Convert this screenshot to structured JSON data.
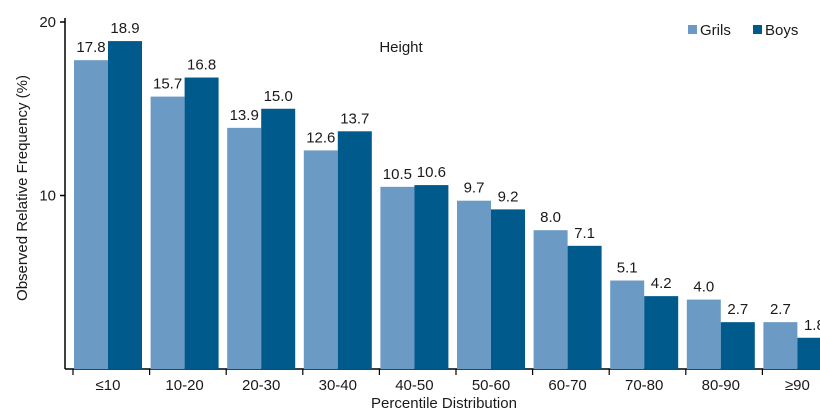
{
  "chart_data": {
    "type": "bar",
    "title": "Height",
    "xlabel": "Percentile Distribution",
    "ylabel": "Observed Relative Frequency (%)",
    "categories": [
      "≤10",
      "10-20",
      "20-30",
      "30-40",
      "40-50",
      "50-60",
      "60-70",
      "70-80",
      "80-90",
      "≥90"
    ],
    "series": [
      {
        "name": "Grils",
        "color": "#6b9ac4",
        "values": [
          17.8,
          15.7,
          13.9,
          12.6,
          10.5,
          9.7,
          8.0,
          5.1,
          4.0,
          2.7
        ],
        "labels": [
          "17.8",
          "15.7",
          "13.9",
          "12.6",
          "10.5",
          "9.7",
          "8.0",
          "5.1",
          "4.0",
          "2.7"
        ]
      },
      {
        "name": "Boys",
        "color": "#005a8c",
        "values": [
          18.9,
          16.8,
          15.0,
          13.7,
          10.6,
          9.2,
          7.1,
          4.2,
          2.7,
          1.8
        ],
        "labels": [
          "18.9",
          "16.8",
          "15.0",
          "13.7",
          "10.6",
          "9.2",
          "7.1",
          "4.2",
          "2.7",
          "1.8"
        ]
      }
    ],
    "ylim": [
      0,
      20
    ],
    "yticks": [
      "10",
      "20"
    ],
    "grid": false,
    "legend": "top-right"
  }
}
